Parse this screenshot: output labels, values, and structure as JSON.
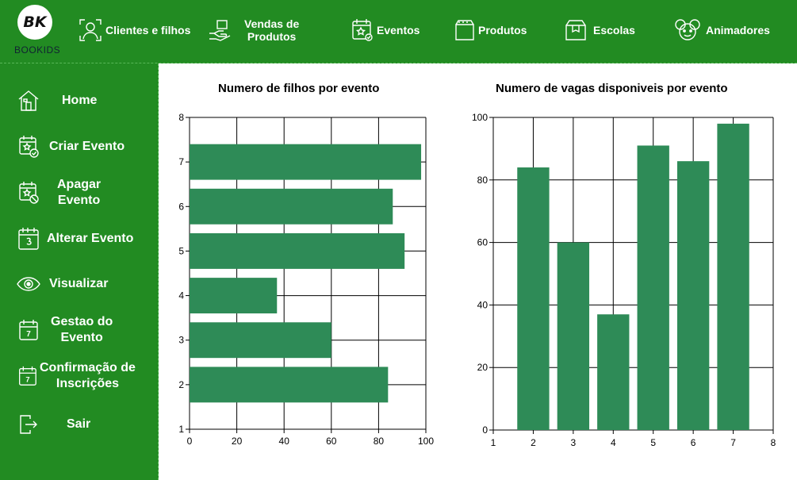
{
  "app": {
    "logo_letters": "BK",
    "logo_word": "BOOKIDS"
  },
  "topnav": [
    {
      "label": "Clientes e filhos",
      "icon": "customer-icon"
    },
    {
      "label": "Vendas de\nProdutos",
      "icon": "sales-hand-icon"
    },
    {
      "label": "Eventos",
      "icon": "calendar-star-icon"
    },
    {
      "label": "Produtos",
      "icon": "product-box-icon"
    },
    {
      "label": "Escolas",
      "icon": "school-box-icon"
    },
    {
      "label": "Animadores",
      "icon": "mascot-icon"
    }
  ],
  "sidebar": [
    {
      "label": "Home",
      "icon": "home-icon"
    },
    {
      "label": "Criar Evento",
      "icon": "calendar-check-icon"
    },
    {
      "label": "Apagar\nEvento",
      "icon": "calendar-block-icon"
    },
    {
      "label": "Alterar Evento",
      "icon": "calendar-edit-icon"
    },
    {
      "label": "Visualizar",
      "icon": "eye-icon"
    },
    {
      "label": "Gestao do\nEvento",
      "icon": "calendar-7-icon"
    },
    {
      "label": "Confirmação de\nInscrições",
      "icon": "calendar-7-icon"
    },
    {
      "label": "Sair",
      "icon": "logout-icon"
    }
  ],
  "colors": {
    "green": "#228b22",
    "bar": "#2e8b57",
    "white": "#ffffff"
  },
  "chart_data": [
    {
      "type": "bar",
      "orientation": "horizontal",
      "title": "Numero de filhos por evento",
      "categories": [
        "2",
        "3",
        "4",
        "5",
        "6",
        "7"
      ],
      "values": [
        84,
        60,
        37,
        91,
        86,
        98
      ],
      "xlim": [
        0,
        100
      ],
      "ylim": [
        1,
        8
      ],
      "x_ticks": [
        "0",
        "20",
        "40",
        "60",
        "80",
        "100"
      ],
      "y_ticks": [
        "1",
        "2",
        "3",
        "4",
        "5",
        "6",
        "7",
        "8"
      ],
      "grid": true
    },
    {
      "type": "bar",
      "orientation": "vertical",
      "title": "Numero de vagas disponiveis por evento",
      "categories": [
        "2",
        "3",
        "4",
        "5",
        "6",
        "7"
      ],
      "values": [
        84,
        60,
        37,
        91,
        86,
        98
      ],
      "xlim": [
        1,
        8
      ],
      "ylim": [
        0,
        100
      ],
      "x_ticks": [
        "1",
        "2",
        "3",
        "4",
        "5",
        "6",
        "7",
        "8"
      ],
      "y_ticks": [
        "0",
        "20",
        "40",
        "60",
        "80",
        "100"
      ],
      "grid": true
    }
  ]
}
